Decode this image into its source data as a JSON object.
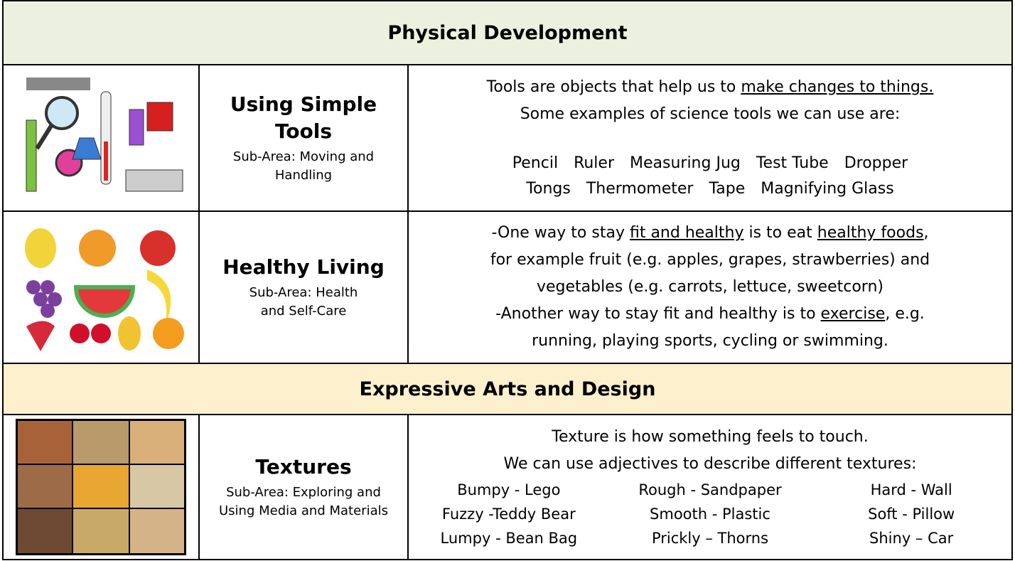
{
  "sections": [
    {
      "title": "Physical Development",
      "rows": [
        {
          "topic": "Using Simple Tools",
          "sub_area": "Sub-Area: Moving and Handling",
          "lines": [
            [
              "Tools are objects that help us to ",
              "make changes to things."
            ],
            [
              "Some examples of science tools we can use are:"
            ]
          ],
          "items": [
            [
              "Pencil",
              "Ruler",
              "Measuring Jug",
              "Test Tube",
              "Dropper"
            ],
            [
              "Tongs",
              "Thermometer",
              "Tape",
              "Magnifying Glass"
            ]
          ]
        },
        {
          "topic": "Healthy Living",
          "sub_area": "Sub-Area: Health and Self-Care",
          "lines": [
            [
              "-One way to stay ",
              "fit and healthy",
              " is to eat ",
              "healthy foods",
              ","
            ],
            [
              "for example fruit (e.g. apples, grapes, strawberries) and"
            ],
            [
              "vegetables (e.g. carrots, lettuce, sweetcorn)"
            ],
            [
              "-Another way to stay fit and healthy is to ",
              "exercise",
              ", e.g."
            ],
            [
              "running, playing sports, cycling or swimming."
            ]
          ]
        }
      ]
    },
    {
      "title": "Expressive Arts and Design",
      "rows": [
        {
          "topic": "Textures",
          "sub_area": "Sub-Area: Exploring and Using Media and Materials",
          "lines": [
            [
              "Texture is how something feels to touch."
            ],
            [
              "We can use adjectives to describe different textures:"
            ]
          ],
          "items": [
            [
              "Bumpy - Lego",
              "Rough - Sandpaper",
              "Hard - Wall"
            ],
            [
              "Fuzzy -Teddy Bear",
              "Smooth - Plastic",
              "Soft - Pillow"
            ],
            [
              "Lumpy - Bean Bag",
              "Prickly – Thorns",
              "Shiny – Car"
            ]
          ]
        }
      ]
    }
  ]
}
